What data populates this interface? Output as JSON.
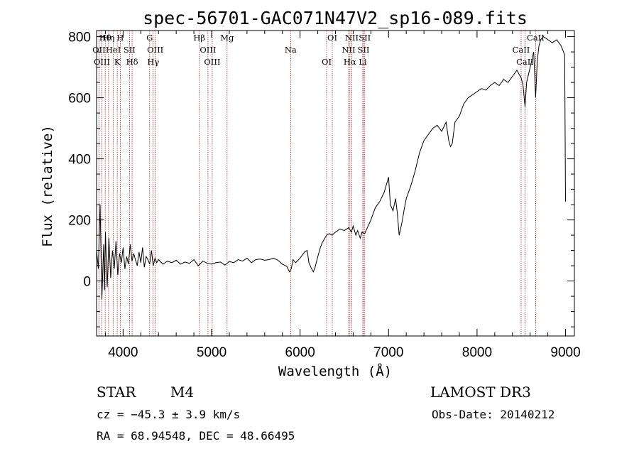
{
  "chart_data": {
    "type": "line",
    "title": "spec-56701-GAC071N47V2_sp16-089.fits",
    "xlabel": "Wavelength (Å)",
    "ylabel": "Flux (relative)",
    "xlim": [
      3700,
      9100
    ],
    "ylim": [
      -180,
      820
    ],
    "xticks": [
      4000,
      5000,
      6000,
      7000,
      8000,
      9000
    ],
    "yticks": [
      0,
      200,
      400,
      600,
      800
    ],
    "series": [
      {
        "name": "spectrum",
        "x": [
          3700,
          3720,
          3740,
          3760,
          3780,
          3790,
          3800,
          3810,
          3820,
          3840,
          3860,
          3880,
          3900,
          3920,
          3940,
          3960,
          3980,
          4000,
          4020,
          4040,
          4060,
          4080,
          4100,
          4120,
          4140,
          4160,
          4180,
          4200,
          4220,
          4240,
          4260,
          4280,
          4300,
          4320,
          4340,
          4360,
          4380,
          4400,
          4450,
          4500,
          4550,
          4600,
          4650,
          4700,
          4750,
          4800,
          4850,
          4900,
          4950,
          5000,
          5050,
          5100,
          5150,
          5200,
          5250,
          5300,
          5350,
          5400,
          5450,
          5500,
          5550,
          5600,
          5650,
          5700,
          5750,
          5800,
          5850,
          5880,
          5900,
          5920,
          5950,
          6000,
          6050,
          6080,
          6100,
          6130,
          6150,
          6170,
          6200,
          6230,
          6250,
          6280,
          6300,
          6330,
          6360,
          6400,
          6450,
          6500,
          6550,
          6580,
          6600,
          6630,
          6650,
          6680,
          6700,
          6730,
          6760,
          6800,
          6850,
          6900,
          6950,
          6980,
          7000,
          7020,
          7050,
          7080,
          7100,
          7120,
          7150,
          7180,
          7200,
          7250,
          7300,
          7350,
          7400,
          7450,
          7500,
          7550,
          7600,
          7650,
          7680,
          7700,
          7720,
          7750,
          7800,
          7850,
          7900,
          7950,
          8000,
          8050,
          8100,
          8150,
          8200,
          8250,
          8300,
          8350,
          8400,
          8450,
          8498,
          8520,
          8542,
          8560,
          8600,
          8640,
          8662,
          8680,
          8700,
          8720,
          8750,
          8800,
          8850,
          8900,
          8950,
          8990,
          9000
        ],
        "values": [
          100,
          40,
          250,
          -60,
          120,
          -30,
          160,
          60,
          -20,
          140,
          10,
          100,
          40,
          130,
          20,
          90,
          60,
          110,
          40,
          80,
          55,
          120,
          65,
          90,
          70,
          50,
          95,
          60,
          110,
          45,
          80,
          70,
          55,
          100,
          50,
          75,
          60,
          70,
          55,
          65,
          60,
          68,
          55,
          62,
          58,
          70,
          50,
          65,
          58,
          55,
          60,
          62,
          52,
          64,
          60,
          70,
          65,
          75,
          60,
          70,
          72,
          68,
          70,
          75,
          68,
          55,
          48,
          30,
          40,
          70,
          60,
          75,
          95,
          100,
          60,
          40,
          30,
          45,
          80,
          110,
          125,
          140,
          150,
          155,
          150,
          160,
          170,
          165,
          175,
          160,
          180,
          150,
          165,
          140,
          160,
          155,
          175,
          200,
          240,
          260,
          290,
          320,
          340,
          250,
          230,
          270,
          220,
          150,
          190,
          240,
          270,
          310,
          360,
          420,
          460,
          480,
          500,
          510,
          490,
          520,
          460,
          440,
          450,
          520,
          540,
          580,
          600,
          610,
          620,
          630,
          625,
          640,
          650,
          640,
          660,
          650,
          670,
          690,
          665,
          640,
          570,
          650,
          700,
          750,
          600,
          720,
          770,
          790,
          800,
          790,
          780,
          790,
          770,
          740,
          260
        ]
      }
    ],
    "spectral_lines": [
      {
        "name": "Hθ",
        "x": 3798
      },
      {
        "name": "OII",
        "x": 3727
      },
      {
        "name": "OIII",
        "x": 3760
      },
      {
        "name": "Hη",
        "x": 3835
      },
      {
        "name": "HeI",
        "x": 3889
      },
      {
        "name": "K",
        "x": 3934
      },
      {
        "name": "H",
        "x": 3968
      },
      {
        "name": "SII",
        "x": 4072
      },
      {
        "name": "Hδ",
        "x": 4102
      },
      {
        "name": "G",
        "x": 4300
      },
      {
        "name": "OIII",
        "x": 4363
      },
      {
        "name": "Hγ",
        "x": 4340
      },
      {
        "name": "Hβ",
        "x": 4861
      },
      {
        "name": "OIII",
        "x": 4959
      },
      {
        "name": "OIII",
        "x": 5007
      },
      {
        "name": "Mg",
        "x": 5175
      },
      {
        "name": "Na",
        "x": 5893
      },
      {
        "name": "OI",
        "x": 6300
      },
      {
        "name": "OI",
        "x": 6364
      },
      {
        "name": "NII",
        "x": 6548
      },
      {
        "name": "Hα",
        "x": 6563
      },
      {
        "name": "NII",
        "x": 6584
      },
      {
        "name": "SII",
        "x": 6717
      },
      {
        "name": "Li",
        "x": 6708
      },
      {
        "name": "SII",
        "x": 6731
      },
      {
        "name": "CaII",
        "x": 8498
      },
      {
        "name": "CaII",
        "x": 8542
      },
      {
        "name": "CaII",
        "x": 8662
      }
    ]
  },
  "info": {
    "object_class": "STAR",
    "subclass": "M4",
    "survey": "LAMOST DR3",
    "redshift": "cz = −45.3 ± 3.9 km/s",
    "obs_date": "Obs-Date: 20140212",
    "coords": "RA =  68.94548, DEC =  48.66495"
  },
  "colors": {
    "spectrum": "#000000",
    "line_marker": "#b22222"
  }
}
